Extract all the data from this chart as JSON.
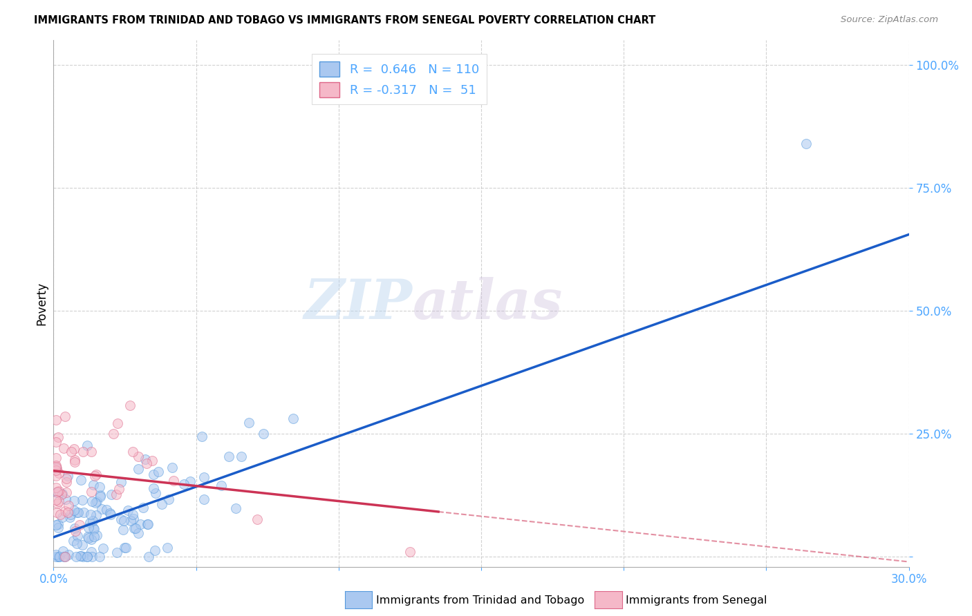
{
  "title": "IMMIGRANTS FROM TRINIDAD AND TOBAGO VS IMMIGRANTS FROM SENEGAL POVERTY CORRELATION CHART",
  "source": "Source: ZipAtlas.com",
  "ylabel": "Poverty",
  "xlim": [
    0.0,
    0.3
  ],
  "ylim": [
    -0.02,
    1.05
  ],
  "xticks": [
    0.0,
    0.05,
    0.1,
    0.15,
    0.2,
    0.25,
    0.3
  ],
  "xtick_labels": [
    "0.0%",
    "",
    "",
    "",
    "",
    "",
    "30.0%"
  ],
  "ytick_positions": [
    0.0,
    0.25,
    0.5,
    0.75,
    1.0
  ],
  "ytick_labels": [
    "",
    "25.0%",
    "50.0%",
    "75.0%",
    "100.0%"
  ],
  "grid_color": "#cccccc",
  "background_color": "#ffffff",
  "series1_color": "#aac8f0",
  "series1_edge_color": "#5599dd",
  "series2_color": "#f5b8c8",
  "series2_edge_color": "#dd6688",
  "trend1_color": "#1a5cc8",
  "trend2_color": "#cc3355",
  "tick_color": "#4da6ff",
  "R1": 0.646,
  "N1": 110,
  "R2": -0.317,
  "N2": 51,
  "legend_label1": "Immigrants from Trinidad and Tobago",
  "legend_label2": "Immigrants from Senegal",
  "watermark_zip": "ZIP",
  "watermark_atlas": "atlas",
  "marker_size": 100,
  "alpha": 0.55,
  "trend1_x0": 0.0,
  "trend1_y0": 0.04,
  "trend1_x1": 0.3,
  "trend1_y1": 0.655,
  "trend2_x0": 0.0,
  "trend2_y0": 0.175,
  "trend2_x1": 0.3,
  "trend2_y1": -0.01,
  "trend2_solid_end": 0.135
}
